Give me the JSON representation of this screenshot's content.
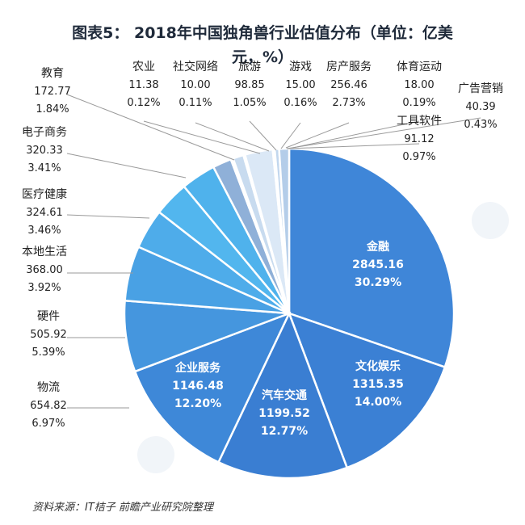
{
  "title_line1": "图表5： 2018年中国独角兽行业估值分布（单位：亿美",
  "title_line2": "元，%）",
  "source": "资料来源：IT桔子  前瞻产业研究院整理",
  "chart_data": {
    "type": "pie",
    "title": "图表5： 2018年中国独角兽行业估值分布（单位：亿美元，%）",
    "slices": [
      {
        "name": "金融",
        "value": 2845.16,
        "value_label": "2845.16",
        "pct_label": "30.29%",
        "color": "#3f86d8"
      },
      {
        "name": "文化娱乐",
        "value": 1315.35,
        "value_label": "1315.35",
        "pct_label": "14.00%",
        "color": "#3b80d4"
      },
      {
        "name": "汽车交通",
        "value": 1199.52,
        "value_label": "1199.52",
        "pct_label": "12.77%",
        "color": "#3a7ed2"
      },
      {
        "name": "企业服务",
        "value": 1146.48,
        "value_label": "1146.48",
        "pct_label": "12.20%",
        "color": "#3e88d8"
      },
      {
        "name": "物流",
        "value": 654.82,
        "value_label": "654.82",
        "pct_label": "6.97%",
        "color": "#4596de"
      },
      {
        "name": "硬件",
        "value": 505.92,
        "value_label": "505.92",
        "pct_label": "5.39%",
        "color": "#49a1e4"
      },
      {
        "name": "本地生活",
        "value": 368.0,
        "value_label": "368.00",
        "pct_label": "3.92%",
        "color": "#4eacea"
      },
      {
        "name": "医疗健康",
        "value": 324.61,
        "value_label": "324.61",
        "pct_label": "3.46%",
        "color": "#52b6ee"
      },
      {
        "name": "电子商务",
        "value": 320.33,
        "value_label": "320.33",
        "pct_label": "3.41%",
        "color": "#4fb2ec"
      },
      {
        "name": "教育",
        "value": 172.77,
        "value_label": "172.77",
        "pct_label": "1.84%",
        "color": "#8fb0d8"
      },
      {
        "name": "农业",
        "value": 11.38,
        "value_label": "11.38",
        "pct_label": "0.12%",
        "color": "#aec6e4"
      },
      {
        "name": "社交网络",
        "value": 10.0,
        "value_label": "10.00",
        "pct_label": "0.11%",
        "color": "#bcd2ea"
      },
      {
        "name": "旅游",
        "value": 98.85,
        "value_label": "98.85",
        "pct_label": "1.05%",
        "color": "#c8dbef"
      },
      {
        "name": "游戏",
        "value": 15.0,
        "value_label": "15.00",
        "pct_label": "0.16%",
        "color": "#d4e3f3"
      },
      {
        "name": "房产服务",
        "value": 256.46,
        "value_label": "256.46",
        "pct_label": "2.73%",
        "color": "#dbe8f6"
      },
      {
        "name": "体育运动",
        "value": 18.0,
        "value_label": "18.00",
        "pct_label": "0.19%",
        "color": "#cfe0f2"
      },
      {
        "name": "广告营销",
        "value": 40.39,
        "value_label": "40.39",
        "pct_label": "0.43%",
        "color": "#c2d7ee"
      },
      {
        "name": "工具软件",
        "value": 91.12,
        "value_label": "91.12",
        "pct_label": "0.97%",
        "color": "#b4cde9"
      }
    ]
  }
}
